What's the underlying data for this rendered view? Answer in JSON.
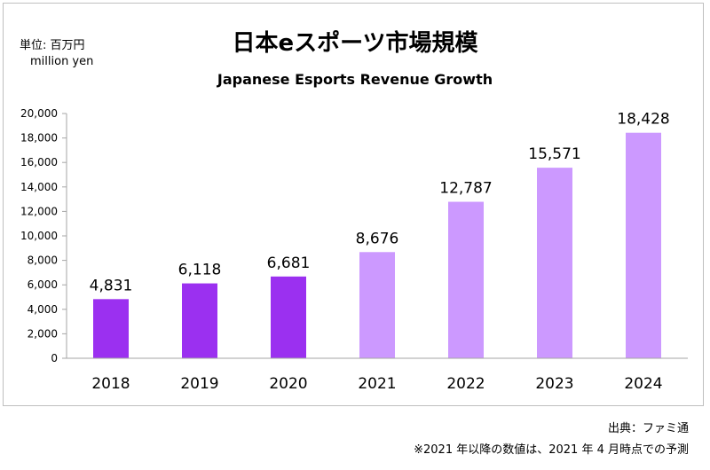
{
  "unit": {
    "jp": "単位: 百万円",
    "en": "million yen"
  },
  "source": "出典：ファミ通",
  "footnote": "※2021 年以降の数値は、2021 年 4 月時点での予測",
  "colors": {
    "actual": "#9b30f0",
    "forecast": "#cc99ff",
    "axis": "#a6a6a6"
  },
  "chart_data": {
    "type": "bar",
    "title": "日本eスポーツ市場規模",
    "subtitle": "Japanese Esports Revenue Growth",
    "categories": [
      "2018",
      "2019",
      "2020",
      "2021",
      "2022",
      "2023",
      "2024"
    ],
    "values": [
      4831,
      6118,
      6681,
      8676,
      12787,
      15571,
      18428
    ],
    "value_labels": [
      "4,831",
      "6,118",
      "6,681",
      "8,676",
      "12,787",
      "15,571",
      "18,428"
    ],
    "forecast_from_index": 3,
    "ylim": [
      0,
      20000
    ],
    "yticks": [
      0,
      2000,
      4000,
      6000,
      8000,
      10000,
      12000,
      14000,
      16000,
      18000,
      20000
    ],
    "ytick_labels": [
      "0",
      "2,000",
      "4,000",
      "6,000",
      "8,000",
      "10,000",
      "12,000",
      "14,000",
      "16,000",
      "18,000",
      "20,000"
    ],
    "grid": false,
    "legend": "none"
  }
}
